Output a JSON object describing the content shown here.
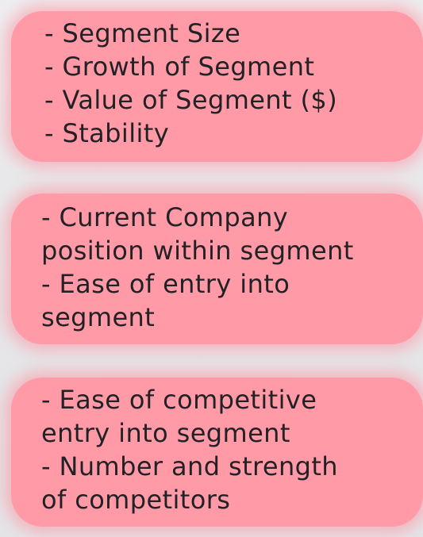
{
  "cards": [
    {
      "lines": [
        "- Segment Size",
        "- Growth of Segment",
        "- Value of Segment ($)",
        "- Stability"
      ]
    },
    {
      "lines": [
        "- Current Company",
        "position within segment",
        "- Ease of entry into",
        "segment"
      ]
    },
    {
      "lines": [
        "- Ease of competitive",
        "entry into segment",
        "- Number and strength",
        "of competitors"
      ]
    }
  ],
  "colors": {
    "card_fill": "#ff9aa6",
    "text": "#222226",
    "background": "#e9e9ec"
  }
}
